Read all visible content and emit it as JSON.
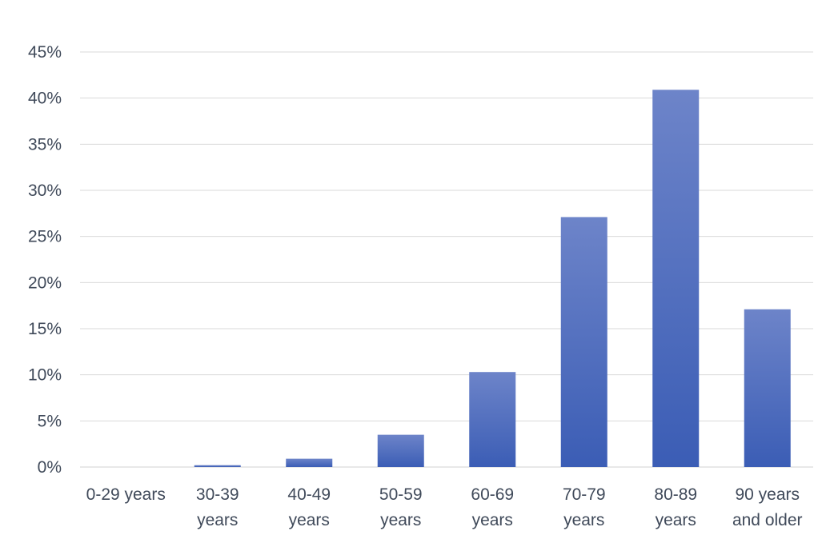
{
  "chart_data": {
    "type": "bar",
    "categories": [
      [
        "0-29 years"
      ],
      [
        "30-39",
        "years"
      ],
      [
        "40-49",
        "years"
      ],
      [
        "50-59",
        "years"
      ],
      [
        "60-69",
        "years"
      ],
      [
        "70-79",
        "years"
      ],
      [
        "80-89",
        "years"
      ],
      [
        "90 years",
        "and older"
      ]
    ],
    "values": [
      0,
      0.2,
      0.9,
      3.5,
      10.3,
      27.1,
      40.9,
      17.1
    ],
    "ylim": [
      0,
      45
    ],
    "yticks": [
      0,
      5,
      10,
      15,
      20,
      25,
      30,
      35,
      40,
      45
    ],
    "ytick_labels": [
      "0%",
      "5%",
      "10%",
      "15%",
      "20%",
      "25%",
      "30%",
      "35%",
      "40%",
      "45%"
    ],
    "title": "",
    "xlabel": "",
    "ylabel": "",
    "grid": true,
    "legend": "none",
    "colors": {
      "bar_top": "#6d84c9",
      "bar_bottom": "#3b5db5"
    }
  }
}
